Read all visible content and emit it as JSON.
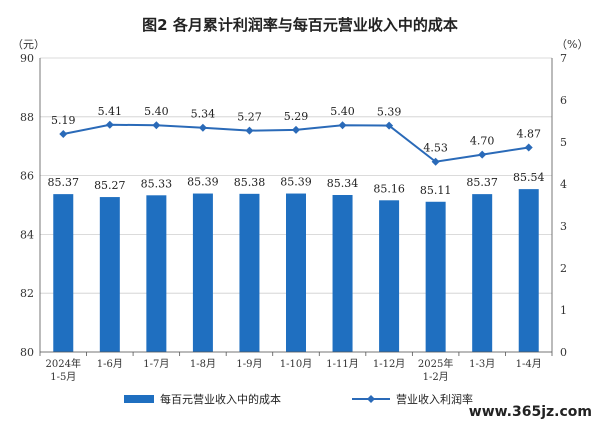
{
  "title": "图2  各月累计利润率与每百元营业收入中的成本",
  "watermark": "www.365jz.com",
  "chart_data": {
    "type": "bar+line",
    "categories": [
      [
        "2024年",
        "1-5月"
      ],
      [
        "1-6月"
      ],
      [
        "1-7月"
      ],
      [
        "1-8月"
      ],
      [
        "1-9月"
      ],
      [
        "1-10月"
      ],
      [
        "1-11月"
      ],
      [
        "1-12月"
      ],
      [
        "2025年",
        "1-2月"
      ],
      [
        "1-3月"
      ],
      [
        "1-4月"
      ]
    ],
    "left_axis": {
      "unit": "（元）",
      "min": 80,
      "max": 90,
      "ticks": [
        80,
        82,
        84,
        86,
        88,
        90
      ]
    },
    "right_axis": {
      "unit": "（%）",
      "min": 0,
      "max": 7,
      "ticks": [
        0,
        1,
        2,
        3,
        4,
        5,
        6,
        7
      ]
    },
    "bar_series": {
      "name": "每百元营业收入中的成本",
      "color": "#1f6fc0",
      "values": [
        85.37,
        85.27,
        85.33,
        85.39,
        85.38,
        85.39,
        85.34,
        85.16,
        85.11,
        85.37,
        85.54
      ],
      "labels": [
        "85.37",
        "85.27",
        "85.33",
        "85.39",
        "85.38",
        "85.39",
        "85.34",
        "85.16",
        "85.11",
        "85.37",
        "85.54"
      ]
    },
    "line_series": {
      "name": "营业收入利润率",
      "color": "#2a6ab8",
      "values": [
        5.19,
        5.41,
        5.4,
        5.34,
        5.27,
        5.29,
        5.4,
        5.39,
        4.53,
        4.7,
        4.87
      ],
      "labels": [
        "5.19",
        "5.41",
        "5.40",
        "5.34",
        "5.27",
        "5.29",
        "5.40",
        "5.39",
        "4.53",
        "4.70",
        "4.87"
      ]
    },
    "grid": true,
    "legend_position": "bottom"
  }
}
